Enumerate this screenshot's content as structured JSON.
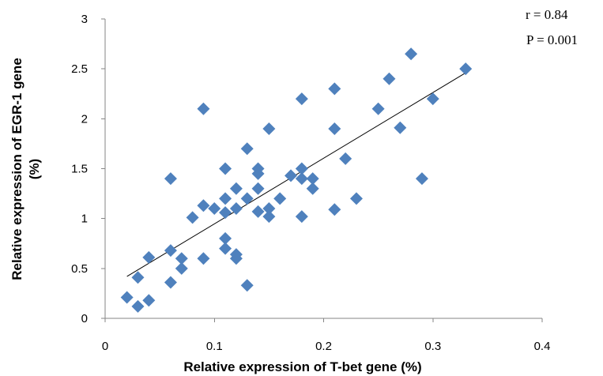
{
  "chart_data": {
    "type": "scatter",
    "title": "",
    "xlabel": "Relative expression of T-bet gene (%)",
    "ylabel": "Relative expression of EGR-1 gene (%)",
    "xlim": [
      0,
      0.4
    ],
    "ylim": [
      0,
      3
    ],
    "x_ticks": [
      "0",
      "0.1",
      "0.2",
      "0.3",
      "0.4"
    ],
    "y_ticks": [
      "0",
      "0.5",
      "1",
      "1.5",
      "2",
      "2.5",
      "3"
    ],
    "grid": false,
    "legend": "none",
    "marker_color": "#4f81bd",
    "trendline": {
      "x": [
        0.02,
        0.33
      ],
      "y": [
        0.42,
        2.46
      ]
    },
    "annotations": {
      "r": "r = 0.84",
      "p": "P = 0.001"
    },
    "points": [
      [
        0.02,
        0.21
      ],
      [
        0.03,
        0.12
      ],
      [
        0.03,
        0.41
      ],
      [
        0.04,
        0.18
      ],
      [
        0.04,
        0.61
      ],
      [
        0.06,
        0.36
      ],
      [
        0.06,
        0.68
      ],
      [
        0.06,
        1.4
      ],
      [
        0.07,
        0.5
      ],
      [
        0.07,
        0.6
      ],
      [
        0.08,
        1.01
      ],
      [
        0.09,
        0.6
      ],
      [
        0.09,
        1.13
      ],
      [
        0.09,
        2.1
      ],
      [
        0.1,
        1.1
      ],
      [
        0.11,
        0.7
      ],
      [
        0.11,
        0.8
      ],
      [
        0.11,
        1.06
      ],
      [
        0.11,
        1.2
      ],
      [
        0.11,
        1.5
      ],
      [
        0.12,
        0.6
      ],
      [
        0.12,
        0.64
      ],
      [
        0.12,
        1.1
      ],
      [
        0.12,
        1.3
      ],
      [
        0.13,
        0.33
      ],
      [
        0.13,
        1.2
      ],
      [
        0.13,
        1.7
      ],
      [
        0.14,
        1.07
      ],
      [
        0.14,
        1.3
      ],
      [
        0.14,
        1.45
      ],
      [
        0.14,
        1.5
      ],
      [
        0.15,
        1.02
      ],
      [
        0.15,
        1.1
      ],
      [
        0.15,
        1.9
      ],
      [
        0.16,
        1.2
      ],
      [
        0.17,
        1.43
      ],
      [
        0.18,
        1.02
      ],
      [
        0.18,
        1.4
      ],
      [
        0.18,
        1.5
      ],
      [
        0.18,
        2.2
      ],
      [
        0.19,
        1.3
      ],
      [
        0.19,
        1.4
      ],
      [
        0.21,
        1.09
      ],
      [
        0.21,
        1.9
      ],
      [
        0.21,
        2.3
      ],
      [
        0.22,
        1.6
      ],
      [
        0.23,
        1.2
      ],
      [
        0.25,
        2.1
      ],
      [
        0.26,
        2.4
      ],
      [
        0.27,
        1.91
      ],
      [
        0.28,
        2.65
      ],
      [
        0.29,
        1.4
      ],
      [
        0.3,
        2.2
      ],
      [
        0.33,
        2.5
      ]
    ]
  }
}
